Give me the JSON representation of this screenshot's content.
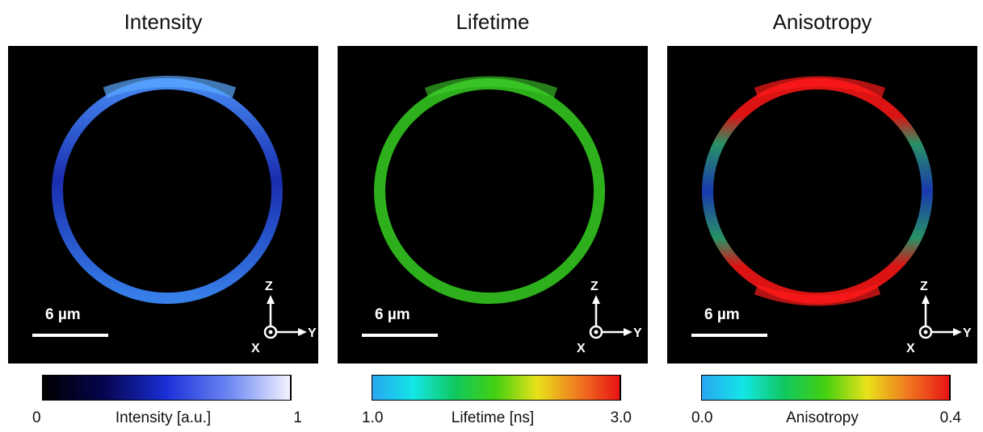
{
  "panels": [
    {
      "title": "Intensity",
      "scale_label": "6 µm",
      "colorbar": {
        "min": "0",
        "max": "1",
        "label": "Intensity [a.u.]",
        "gradient": [
          "#000000",
          "#050550",
          "#1a2fd8",
          "#6a86f2",
          "#f2f2ff"
        ]
      },
      "ring_color": "#3a78f0",
      "axes": {
        "z": "Z",
        "y": "Y",
        "x": "X"
      }
    },
    {
      "title": "Lifetime",
      "scale_label": "6 µm",
      "colorbar": {
        "min": "1.0",
        "max": "3.0",
        "label": "Lifetime [ns]",
        "gradient": [
          "#29a6f0",
          "#13e6e6",
          "#10c860",
          "#44d010",
          "#e8e21a",
          "#f07820",
          "#e81414"
        ]
      },
      "ring_color": "#30c020",
      "axes": {
        "z": "Z",
        "y": "Y",
        "x": "X"
      }
    },
    {
      "title": "Anisotropy",
      "scale_label": "6 µm",
      "colorbar": {
        "min": "0.0",
        "max": "0.4",
        "label": "Anisotropy",
        "gradient": [
          "#29a6f0",
          "#13e6e6",
          "#10c860",
          "#44d010",
          "#e8e21a",
          "#f07820",
          "#e81414"
        ]
      },
      "ring_color": "#e81414",
      "axes": {
        "z": "Z",
        "y": "Y",
        "x": "X"
      }
    }
  ]
}
